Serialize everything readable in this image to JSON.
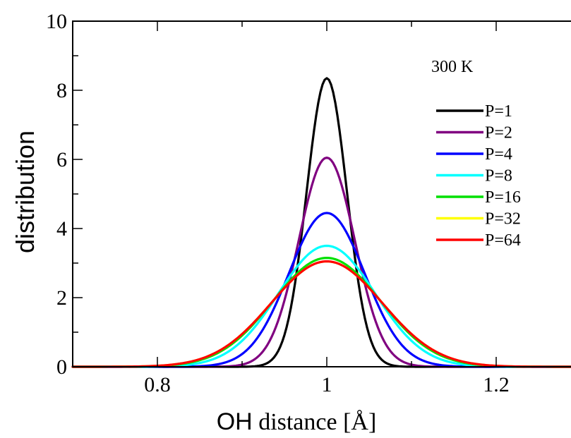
{
  "chart_data": {
    "type": "line",
    "title": "",
    "xlabel_main": "OH",
    "xlabel_rest": " distance [Å]",
    "ylabel": "distribution",
    "xlim": [
      0.7,
      1.3
    ],
    "ylim": [
      0,
      10
    ],
    "x_ticks": [
      {
        "value": 0.8,
        "label": "0.8"
      },
      {
        "value": 1.0,
        "label": "1"
      },
      {
        "value": 1.2,
        "label": "1.2"
      }
    ],
    "y_ticks": [
      {
        "value": 0,
        "label": "0"
      },
      {
        "value": 2,
        "label": "2"
      },
      {
        "value": 4,
        "label": "4"
      },
      {
        "value": 6,
        "label": "6"
      },
      {
        "value": 8,
        "label": "8"
      },
      {
        "value": 10,
        "label": "10"
      }
    ],
    "grid": false,
    "legend_position": "top-right",
    "annotation": "300 K",
    "series": [
      {
        "name": "P=1",
        "color": "#000000",
        "peak_x": 1.0,
        "peak_y": 8.35,
        "sigma": 0.0238
      },
      {
        "name": "P=2",
        "color": "#800080",
        "peak_x": 1.0,
        "peak_y": 6.05,
        "sigma": 0.033
      },
      {
        "name": "P=4",
        "color": "#0000ff",
        "peak_x": 1.0,
        "peak_y": 4.45,
        "sigma": 0.0448
      },
      {
        "name": "P=8",
        "color": "#00ffff",
        "peak_x": 1.0,
        "peak_y": 3.5,
        "sigma": 0.057
      },
      {
        "name": "P=16",
        "color": "#00e000",
        "peak_x": 1.0,
        "peak_y": 3.15,
        "sigma": 0.0633
      },
      {
        "name": "P=32",
        "color": "#ffff00",
        "peak_x": 1.0,
        "peak_y": 3.05,
        "sigma": 0.0654
      },
      {
        "name": "P=64",
        "color": "#ff0000",
        "peak_x": 1.0,
        "peak_y": 3.05,
        "sigma": 0.0654
      }
    ]
  }
}
